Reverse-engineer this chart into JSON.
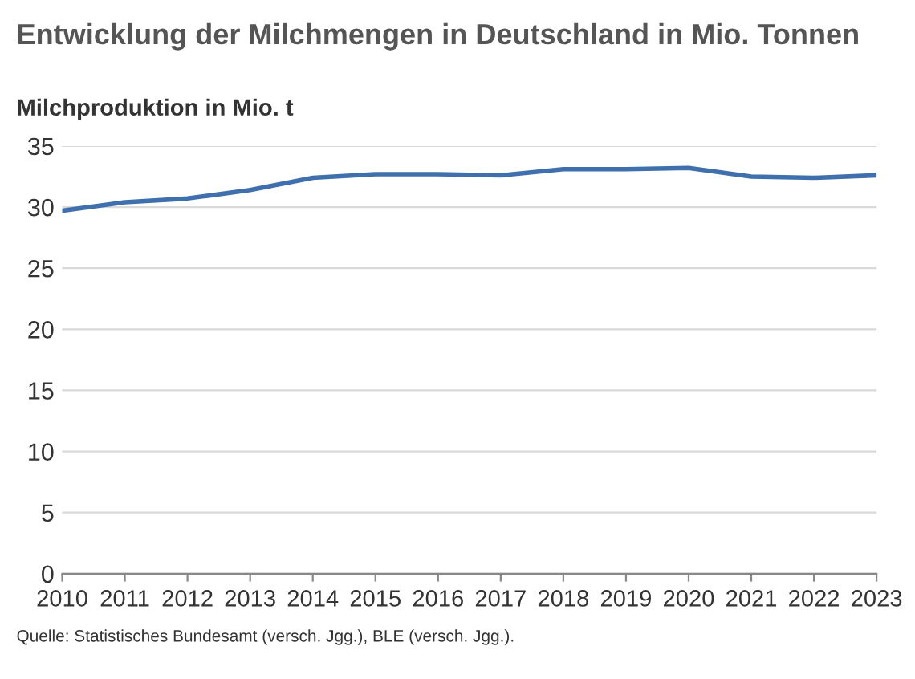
{
  "chart_data": {
    "type": "line",
    "title": "Entwicklung der Milchmengen in Deutschland in Mio. Tonnen",
    "ylabel": "Milchproduktion in Mio. t",
    "x": [
      2010,
      2011,
      2012,
      2013,
      2014,
      2015,
      2016,
      2017,
      2018,
      2019,
      2020,
      2021,
      2022,
      2023
    ],
    "series": [
      {
        "color": "#3f6fad",
        "values": [
          29.7,
          30.4,
          30.7,
          31.4,
          32.4,
          32.7,
          32.7,
          32.6,
          33.1,
          33.1,
          33.2,
          32.5,
          32.4,
          32.6
        ]
      }
    ],
    "xlim": [
      2010,
      2023
    ],
    "xticks": [
      2010,
      2011,
      2012,
      2013,
      2014,
      2015,
      2016,
      2017,
      2018,
      2019,
      2020,
      2021,
      2022,
      2023
    ],
    "ylim": [
      0,
      35
    ],
    "yticks": [
      0,
      5,
      10,
      15,
      20,
      25,
      30,
      35
    ],
    "grid": "y",
    "legend": false,
    "marker": "none",
    "line_style": "solid",
    "annotations": [
      "Quelle: Statistisches Bundesamt (versch. Jgg.), BLE (versch. Jgg.)."
    ]
  }
}
